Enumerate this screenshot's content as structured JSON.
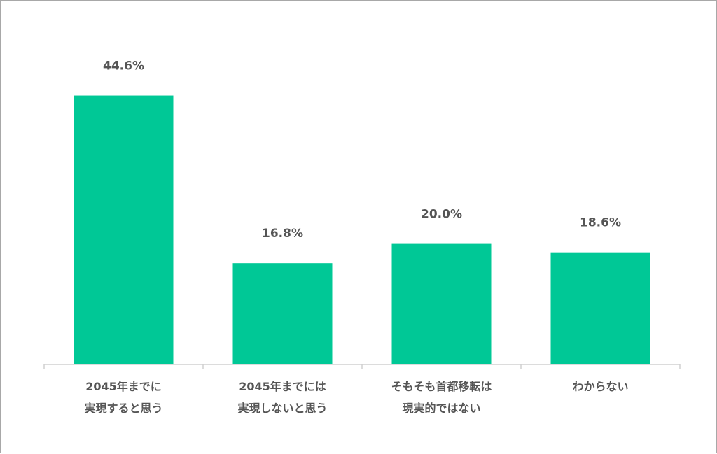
{
  "chart_data": {
    "type": "bar",
    "categories": [
      [
        "2045年までに",
        "実現すると思う"
      ],
      [
        "2045年までには",
        "実現しないと思う"
      ],
      [
        "そもそも首都移転は",
        "現実的ではない"
      ],
      [
        "わからない"
      ]
    ],
    "values": [
      44.6,
      16.8,
      20.0,
      18.6
    ],
    "value_labels": [
      "44.6%",
      "16.8%",
      "20.0%",
      "18.6%"
    ],
    "title": "",
    "xlabel": "",
    "ylabel": "",
    "ylim": [
      0,
      50
    ],
    "grid": false,
    "legend": "none",
    "bar_color": "#00C896",
    "axis_color": "#d0d0d0",
    "text_color": "#555555"
  }
}
